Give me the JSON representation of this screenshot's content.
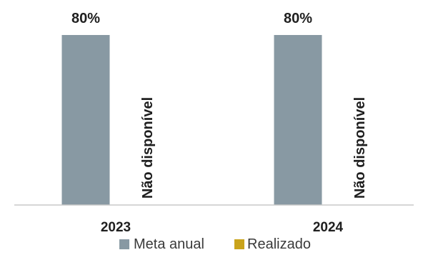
{
  "chart_data": {
    "type": "bar",
    "categories": [
      "2023",
      "2024"
    ],
    "series": [
      {
        "name": "Meta anual",
        "values": [
          80,
          80
        ],
        "color": "#8899a3"
      },
      {
        "name": "Realizado",
        "values": [
          null,
          null
        ],
        "color": "#c9a31b"
      }
    ],
    "data_labels": {
      "meta": [
        "80%",
        "80%"
      ],
      "realizado": [
        "Não disponível",
        "Não disponível"
      ]
    },
    "ylim": [
      0,
      100
    ],
    "grid": false,
    "legend_position": "bottom",
    "axis_color": "#c8c8c8"
  }
}
